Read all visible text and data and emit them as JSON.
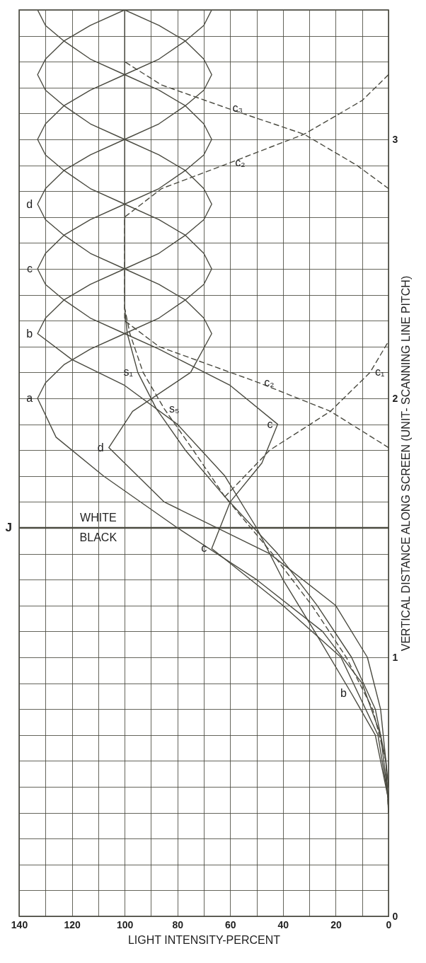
{
  "chart_data": {
    "type": "line",
    "xlabel": "LIGHT INTENSITY-PERCENT",
    "ylabel": "VERTICAL DISTANCE ALONG SCREEN (UNIT- SCANNING LINE PITCH)",
    "xlim": [
      140,
      0
    ],
    "ylim": [
      0,
      3.5
    ],
    "yticks": [
      0,
      {
        "value": 0.1,
        "label": null
      },
      {
        "value": 0.2,
        "label": null
      },
      {
        "value": 0.3,
        "label": null
      },
      {
        "value": 0.4,
        "label": null
      },
      {
        "value": 0.5,
        "label": null
      },
      {
        "value": 0.6,
        "label": null
      },
      {
        "value": 0.7,
        "label": null
      },
      {
        "value": 0.8,
        "label": null
      },
      {
        "value": 0.9,
        "label": null
      },
      1,
      {
        "value": 1.1,
        "label": null
      },
      {
        "value": 1.2,
        "label": null
      },
      {
        "value": 1.3,
        "label": null
      },
      {
        "value": 1.4,
        "label": null
      },
      {
        "value": 1.5,
        "label": null
      },
      {
        "value": 1.6,
        "label": null
      },
      {
        "value": 1.7,
        "label": null
      },
      {
        "value": 1.8,
        "label": null
      },
      {
        "value": 1.9,
        "label": null
      },
      2,
      {
        "value": 2.1,
        "label": null
      },
      {
        "value": 2.2,
        "label": null
      },
      {
        "value": 2.3,
        "label": null
      },
      {
        "value": 2.4,
        "label": null
      },
      {
        "value": 2.5,
        "label": null
      },
      {
        "value": 2.6,
        "label": null
      },
      {
        "value": 2.7,
        "label": null
      },
      {
        "value": 2.8,
        "label": null
      },
      {
        "value": 2.9,
        "label": null
      },
      3,
      {
        "value": 3.1,
        "label": null
      },
      {
        "value": 3.2,
        "label": null
      },
      {
        "value": 3.3,
        "label": null
      },
      {
        "value": 3.4,
        "label": null
      },
      {
        "value": 3.5,
        "label": null
      }
    ],
    "xticks": [
      0,
      {
        "value": 10,
        "label": null
      },
      20,
      {
        "value": 30,
        "label": null
      },
      40,
      {
        "value": 50,
        "label": null
      },
      60,
      {
        "value": 70,
        "label": null
      },
      80,
      {
        "value": 90,
        "label": null
      },
      100,
      {
        "value": 110,
        "label": null
      },
      120,
      {
        "value": 130,
        "label": null
      },
      140
    ],
    "grid": true,
    "line_style": "solid",
    "series": [
      {
        "color": "#4a4a40",
        "values": [
          0.45,
          0.7,
          0.9,
          1.1,
          1.3,
          1.5,
          1.7,
          1.85,
          2,
          2.06,
          2.13,
          2.19,
          2.25,
          2.31,
          2.38,
          2.44,
          2.5,
          2.56,
          2.63,
          2.69,
          2.75,
          2.81,
          2.88,
          2.94,
          3,
          3.06,
          3.13,
          3.19,
          3.25,
          3.31,
          3.38,
          3.44,
          3.5
        ],
        "x": [
          0,
          3,
          10,
          25,
          50,
          80,
          108,
          126,
          133,
          130,
          123,
          113,
          100,
          87,
          77,
          70,
          67,
          70,
          77,
          87,
          100,
          113,
          123,
          130,
          133,
          130,
          123,
          113,
          100,
          87,
          77,
          70,
          67
        ]
      },
      {
        "color": "#4a4a40",
        "values": [
          0.45,
          0.7,
          0.86,
          1.1,
          1.3,
          1.5,
          1.7,
          1.9,
          2.05,
          2.15,
          2.25,
          2.31,
          2.38,
          2.44,
          2.5,
          2.56,
          2.63,
          2.69,
          2.75,
          2.81,
          2.88,
          2.94,
          3,
          3.06,
          3.13,
          3.19,
          3.25,
          3.31,
          3.38,
          3.44,
          3.5
        ],
        "x": [
          0,
          5,
          14,
          28,
          40,
          50,
          62,
          80,
          100,
          120,
          133,
          130,
          123,
          113,
          100,
          87,
          77,
          70,
          67,
          70,
          77,
          87,
          100,
          113,
          123,
          130,
          133,
          130,
          123,
          113,
          100
        ]
      },
      {
        "color": "#4a4a40",
        "values": [
          0.45,
          0.7,
          1,
          1.2,
          1.42,
          1.6,
          1.75,
          1.9,
          2.05,
          2.19,
          2.25,
          2.31,
          2.38,
          2.44,
          2.5,
          2.56,
          2.63,
          2.69,
          2.75,
          2.81,
          2.88,
          2.94,
          3,
          3.06,
          3.13,
          3.19,
          3.25,
          3.31,
          3.38,
          3.44,
          3.5
        ],
        "x": [
          0,
          4,
          18,
          40,
          67,
          60,
          48,
          42,
          60,
          87,
          100,
          113,
          123,
          130,
          133,
          130,
          123,
          113,
          100,
          87,
          77,
          70,
          67,
          70,
          77,
          87,
          100,
          113,
          123,
          130,
          133
        ]
      },
      {
        "color": "#4a4a40",
        "values": [
          0.5,
          0.8,
          1,
          1.2,
          1.4,
          1.6,
          1.81,
          1.95,
          2.1,
          2.25,
          2.31,
          2.38,
          2.44,
          2.5,
          2.56,
          2.63,
          2.69,
          2.75,
          2.81,
          2.88,
          2.94,
          3,
          3.06,
          3.13,
          3.19,
          3.25,
          3.31,
          3.38,
          3.44,
          3.5
        ],
        "x": [
          0,
          3,
          8,
          20,
          45,
          85,
          106,
          97,
          75,
          67,
          70,
          77,
          87,
          100,
          113,
          123,
          130,
          133,
          130,
          123,
          113,
          100,
          87,
          77,
          70,
          67,
          70,
          77,
          87,
          100
        ]
      },
      {
        "color": "#4a4a40",
        "values": [
          0.4,
          0.6,
          0.8,
          1,
          1.2,
          1.4,
          1.62,
          1.8,
          1.96,
          2.1,
          2.25,
          2.35,
          3.5
        ],
        "x": [
          0,
          1,
          5,
          14,
          27,
          42,
          62,
          77,
          88,
          95,
          99,
          100,
          100
        ]
      },
      {
        "color": "#4a4a40",
        "line_style": "dashed",
        "values": [
          0.4,
          0.6,
          0.8,
          1,
          1.2,
          1.4,
          1.62,
          1.8,
          1.96,
          2.1,
          2.25,
          2.35
        ],
        "x": [
          0,
          1,
          6,
          16,
          29,
          44,
          62,
          74,
          85,
          93,
          98,
          100
        ]
      },
      {
        "color": "#4a4a40",
        "line_style": "dashed",
        "values": [
          1.62,
          1.8,
          1.95,
          2.1,
          2.22
        ],
        "x": [
          62,
          45,
          22,
          7,
          0
        ]
      },
      {
        "color": "#4a4a40",
        "line_style": "dashed",
        "values": [
          1.81,
          1.95,
          2.06,
          2.2,
          2.3,
          2.7,
          2.81,
          2.91,
          3.02,
          3.15,
          3.25
        ],
        "x": [
          0,
          22,
          49,
          87,
          100,
          100,
          86,
          60,
          32,
          10,
          0
        ]
      },
      {
        "color": "#4a4a40",
        "line_style": "dashed",
        "values": [
          2.81,
          2.9,
          3.02,
          3.12,
          3.21,
          3.3
        ],
        "x": [
          0,
          12,
          32,
          61,
          86,
          100
        ]
      }
    ],
    "ref_lines": [
      {
        "axis": "y",
        "value": 1.5,
        "label": "J"
      }
    ],
    "annotations": [
      {
        "text": "a",
        "y": 2,
        "x": 133
      },
      {
        "text": "b",
        "y": 2.25,
        "x": 133
      },
      {
        "text": "c",
        "y": 2.5,
        "x": 133
      },
      {
        "text": "d",
        "y": 2.75,
        "x": 133
      },
      {
        "text": "d",
        "y": 1.81,
        "x": 106
      },
      {
        "text": "c",
        "y": 1.9,
        "x": 42
      },
      {
        "text": "c",
        "y": 1.42,
        "x": 67
      },
      {
        "text": "b",
        "y": 0.86,
        "x": 14
      },
      {
        "text": "s₁",
        "y": 2.1,
        "x": 95
      },
      {
        "text": "s₅",
        "y": 1.96,
        "x": 85
      },
      {
        "text": "c₂",
        "y": 2.06,
        "x": 49
      },
      {
        "text": "c₁",
        "y": 2.1,
        "x": 7
      },
      {
        "text": "c₃",
        "y": 3.12,
        "x": 61
      },
      {
        "text": "c₂",
        "y": 2.91,
        "x": 60
      },
      {
        "text": "WHITE",
        "y": 1.5,
        "x": 110
      },
      {
        "text": "BLACK",
        "y": 1.5,
        "x": 110
      }
    ]
  }
}
